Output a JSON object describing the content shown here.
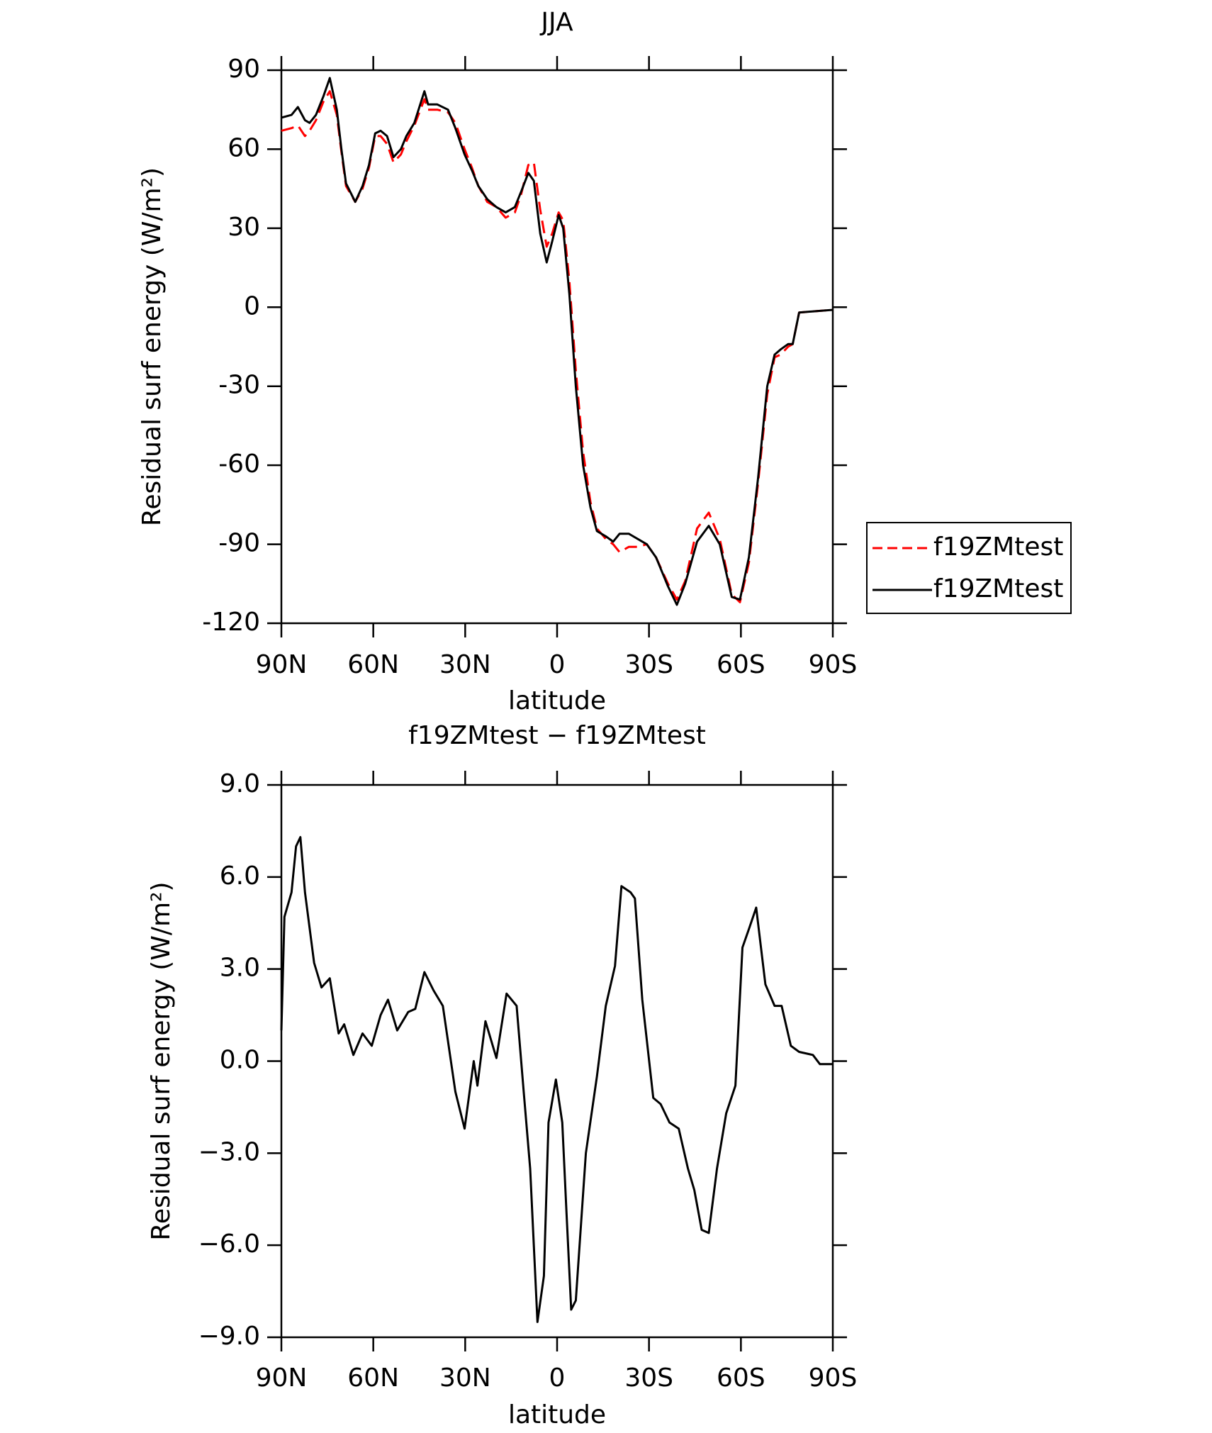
{
  "chart_data": [
    {
      "type": "line",
      "title": "JJA",
      "x_label": "latitude",
      "y_label": "Residual surf energy (W/m²)",
      "x": [
        90,
        86.7,
        84.6,
        82.3,
        80.8,
        78.7,
        76.3,
        74.2,
        71.9,
        70.4,
        68.9,
        65.9,
        63.5,
        61.4,
        59.4,
        57.6,
        55.5,
        53.4,
        51,
        49.2,
        46.6,
        43.3,
        42.1,
        39.1,
        35.6,
        33.2,
        30.2,
        27.8,
        25.7,
        22.8,
        19.8,
        16.8,
        13.8,
        11.7,
        9.4,
        7.6,
        5.5,
        3.4,
        1.6,
        -0.5,
        -2,
        -4,
        -6.1,
        -8.5,
        -10.9,
        -13,
        -15.9,
        -18.3,
        -20.4,
        -23.4,
        -26.3,
        -29.3,
        -32.3,
        -36.2,
        -39.1,
        -41.8,
        -45.7,
        -49.5,
        -53.1,
        -57,
        -59.7,
        -62.6,
        -65.6,
        -68.6,
        -71,
        -73,
        -75.4,
        -76.9,
        -79,
        -90
      ],
      "series": [
        {
          "name": "f19ZMtest",
          "color": "#ff0000",
          "line_style": "dashed",
          "values": [
            67,
            68,
            69,
            65,
            67,
            71,
            78,
            82,
            73,
            59,
            46,
            40,
            45,
            53,
            65,
            65,
            62,
            55,
            58,
            63,
            69,
            79,
            75,
            75,
            74,
            70,
            60,
            53,
            46,
            40,
            38,
            34,
            36,
            43,
            54,
            55,
            37,
            23,
            28,
            36,
            33,
            10,
            -24,
            -55,
            -74,
            -84,
            -88,
            -90,
            -93,
            -91,
            -91,
            -90,
            -95,
            -105,
            -111,
            -104,
            -84,
            -78,
            -88,
            -109,
            -112,
            -97,
            -67,
            -33,
            -19,
            -18,
            -15,
            -14,
            -2,
            -1
          ]
        },
        {
          "name": "f19ZMtest",
          "color": "#000000",
          "line_style": "solid",
          "values": [
            72,
            73,
            76,
            71,
            70,
            73,
            80,
            87,
            75,
            60,
            47,
            40,
            46,
            54,
            66,
            67,
            65,
            57,
            60,
            65,
            70,
            82,
            77,
            77,
            75,
            68,
            58,
            52,
            46,
            41,
            38,
            36,
            38,
            44,
            51,
            48,
            28,
            17,
            25,
            35,
            30,
            5,
            -30,
            -60,
            -76,
            -85,
            -87,
            -89,
            -86,
            -86,
            -88,
            -90,
            -95,
            -106,
            -113,
            -105,
            -89,
            -83,
            -90,
            -110,
            -111,
            -95,
            -65,
            -30,
            -18,
            -16,
            -14,
            -14,
            -2,
            -1
          ]
        }
      ],
      "xlim": [
        90,
        -90
      ],
      "xticks": [
        {
          "value": 90,
          "label": "90N"
        },
        {
          "value": 60,
          "label": "60N"
        },
        {
          "value": 30,
          "label": "30N"
        },
        0,
        {
          "value": -30,
          "label": "30S"
        },
        {
          "value": -60,
          "label": "60S"
        },
        {
          "value": -90,
          "label": "90S"
        }
      ],
      "ylim": [
        -120,
        90
      ],
      "yticks": [
        -120,
        -90,
        -60,
        -30,
        0,
        30,
        60,
        90
      ],
      "legend": "right"
    },
    {
      "type": "line",
      "title": "f19ZMtest − f19ZMtest",
      "x_label": "latitude",
      "y_label": "Residual surf energy (W/m²)",
      "color": "#000000",
      "x": [
        90,
        89,
        86.7,
        85.2,
        83.8,
        82.3,
        79.3,
        76.9,
        74.2,
        71.3,
        69.5,
        66.5,
        63.5,
        60.5,
        57.6,
        55.2,
        52.2,
        48.6,
        46.3,
        43.3,
        40.3,
        37.3,
        33.2,
        30.2,
        27.2,
        26,
        23.4,
        19.8,
        16.5,
        13.2,
        10.9,
        8.8,
        6.4,
        4.3,
        2.8,
        0.4,
        -1.7,
        -3.1,
        -4.6,
        -6.1,
        -9.4,
        -13,
        -15.9,
        -18.9,
        -21,
        -24,
        -25.4,
        -27.8,
        -31.4,
        -33.8,
        -36.7,
        -39.7,
        -42.7,
        -44.8,
        -47.2,
        -49.5,
        -52.2,
        -55.2,
        -58.2,
        -60.5,
        -62.6,
        -65,
        -68,
        -71,
        -73.3,
        -76.3,
        -79,
        -83.5,
        -85.8,
        -90
      ],
      "values": [
        1,
        4.7,
        5.5,
        7,
        7.3,
        5.5,
        3.2,
        2.4,
        2.7,
        0.9,
        1.2,
        0.2,
        0.9,
        0.5,
        1.5,
        2,
        1,
        1.6,
        1.7,
        2.9,
        2.3,
        1.8,
        -1,
        -2.2,
        0,
        -0.8,
        1.3,
        0.1,
        2.2,
        1.8,
        -1,
        -3.5,
        -8.5,
        -7,
        -2,
        -0.6,
        -2,
        -5,
        -8.1,
        -7.8,
        -3,
        -0.5,
        1.8,
        3.1,
        5.7,
        5.5,
        5.3,
        2,
        -1.2,
        -1.4,
        -2,
        -2.2,
        -3.5,
        -4.2,
        -5.5,
        -5.6,
        -3.5,
        -1.7,
        -0.8,
        3.7,
        4.3,
        5,
        2.5,
        1.8,
        1.8,
        0.5,
        0.3,
        0.2,
        -0.1,
        -0.1
      ],
      "xlim": [
        90,
        -90
      ],
      "xticks": [
        {
          "value": 90,
          "label": "90N"
        },
        {
          "value": 60,
          "label": "60N"
        },
        {
          "value": 30,
          "label": "30N"
        },
        0,
        {
          "value": -30,
          "label": "30S"
        },
        {
          "value": -60,
          "label": "60S"
        },
        {
          "value": -90,
          "label": "90S"
        }
      ],
      "ylim": [
        -9,
        9
      ],
      "yticks": [
        {
          "value": -9,
          "label": "−9.0"
        },
        {
          "value": -6,
          "label": "−6.0"
        },
        {
          "value": -3,
          "label": "−3.0"
        },
        {
          "value": 0,
          "label": "0.0"
        },
        {
          "value": 3,
          "label": "3.0"
        },
        {
          "value": 6,
          "label": "6.0"
        },
        {
          "value": 9,
          "label": "9.0"
        }
      ]
    }
  ]
}
